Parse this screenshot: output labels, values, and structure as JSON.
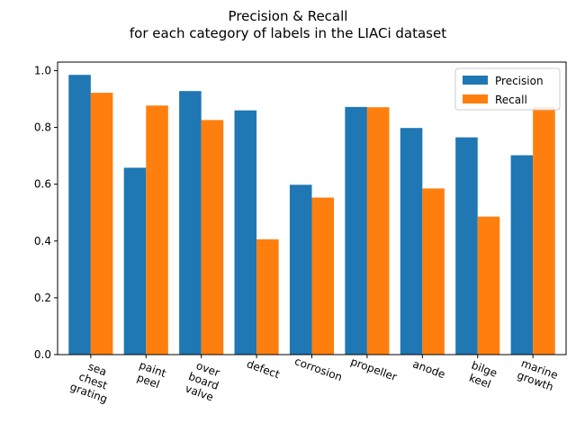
{
  "chart_data": {
    "type": "bar",
    "title": [
      "Precision & Recall",
      "for each category of labels in the LIACi dataset"
    ],
    "xlabel": "",
    "ylabel": "",
    "categories": [
      [
        "sea",
        "chest",
        "grating"
      ],
      [
        "paint",
        "peel"
      ],
      [
        "over",
        "board",
        "valve"
      ],
      [
        "defect"
      ],
      [
        "corrosion"
      ],
      [
        "propeller"
      ],
      [
        "anode"
      ],
      [
        "bilge",
        "keel"
      ],
      [
        "marine",
        "growth"
      ]
    ],
    "series": [
      {
        "name": "Precision",
        "color": "#1f77b4",
        "values": [
          0.985,
          0.658,
          0.928,
          0.86,
          0.598,
          0.872,
          0.798,
          0.765,
          0.702
        ]
      },
      {
        "name": "Recall",
        "color": "#ff7f0e",
        "values": [
          0.922,
          0.877,
          0.826,
          0.406,
          0.553,
          0.871,
          0.585,
          0.486,
          0.872
        ]
      }
    ],
    "ylim": [
      0,
      1.03
    ],
    "yticks": [
      "0.0",
      "0.2",
      "0.4",
      "0.6",
      "0.8",
      "1.0"
    ],
    "legend_position": "top-right",
    "grid": false
  }
}
